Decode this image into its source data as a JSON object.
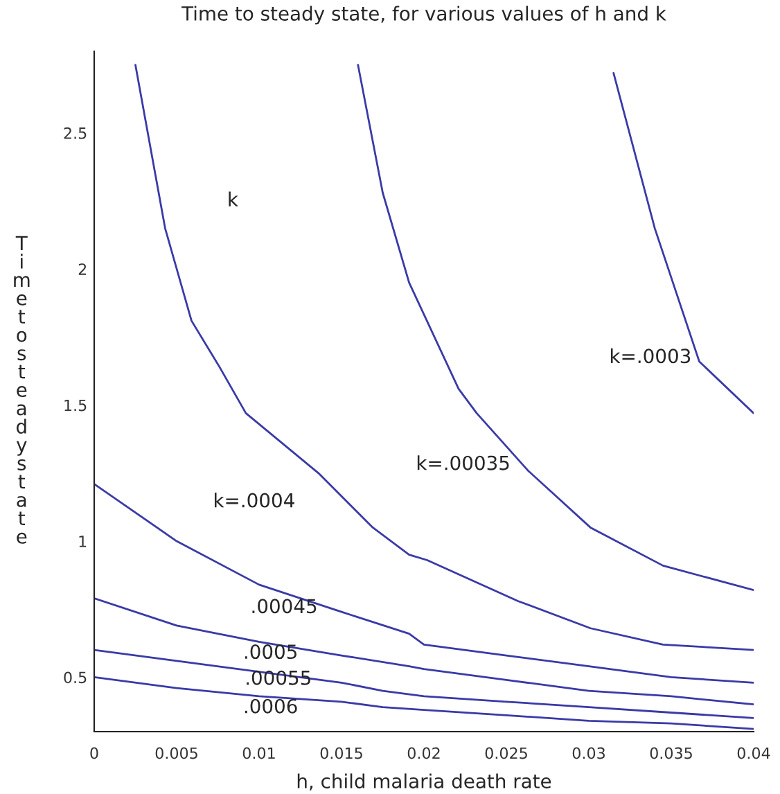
{
  "chart_data": {
    "type": "line",
    "title": "Time to steady state, for various values of h and k",
    "xlabel": "h, child malaria death rate",
    "ylabel": "Time to steady state",
    "xlim": [
      0,
      0.04
    ],
    "ylim": [
      0.3,
      2.8
    ],
    "xticks": [
      0,
      0.005,
      0.01,
      0.015,
      0.02,
      0.025,
      0.03,
      0.035,
      0.04
    ],
    "yticks": [
      0.5,
      1,
      1.5,
      2,
      2.5
    ],
    "grid": false,
    "marker": "none",
    "line_style": "solid",
    "series": [
      {
        "color": "#3a3aa8",
        "x": [
          0.0315,
          0.034,
          0.0367,
          0.04
        ],
        "values": [
          2.72,
          2.15,
          1.66,
          1.47
        ]
      },
      {
        "color": "#3a3aa8",
        "x": [
          0.016,
          0.0175,
          0.0191,
          0.0221,
          0.0232,
          0.0263,
          0.0301,
          0.0345,
          0.04
        ],
        "values": [
          2.75,
          2.28,
          1.95,
          1.56,
          1.47,
          1.26,
          1.05,
          0.91,
          0.82
        ]
      },
      {
        "color": "#3a3aa8",
        "x": [
          0.0025,
          0.0043,
          0.0059,
          0.0076,
          0.0092,
          0.0136,
          0.0169,
          0.0191,
          0.0202,
          0.0257,
          0.0301,
          0.0345,
          0.04
        ],
        "values": [
          2.75,
          2.15,
          1.81,
          1.64,
          1.47,
          1.25,
          1.05,
          0.95,
          0.93,
          0.78,
          0.68,
          0.62,
          0.6
        ]
      },
      {
        "color": "#3a3aa8",
        "x": [
          0,
          0.005,
          0.01,
          0.015,
          0.0191,
          0.02,
          0.025,
          0.03,
          0.035,
          0.04
        ],
        "values": [
          1.21,
          1.0,
          0.84,
          0.74,
          0.66,
          0.62,
          0.58,
          0.54,
          0.5,
          0.48
        ]
      },
      {
        "color": "#3a3aa8",
        "x": [
          0,
          0.005,
          0.01,
          0.015,
          0.0191,
          0.02,
          0.025,
          0.03,
          0.035,
          0.04
        ],
        "values": [
          0.79,
          0.69,
          0.63,
          0.58,
          0.54,
          0.53,
          0.49,
          0.45,
          0.43,
          0.4
        ]
      },
      {
        "color": "#3a3aa8",
        "x": [
          0,
          0.005,
          0.01,
          0.015,
          0.0175,
          0.02,
          0.025,
          0.03,
          0.035,
          0.04
        ],
        "values": [
          0.6,
          0.56,
          0.52,
          0.48,
          0.45,
          0.43,
          0.41,
          0.39,
          0.37,
          0.35
        ]
      },
      {
        "color": "#3a3aa8",
        "x": [
          0,
          0.005,
          0.01,
          0.015,
          0.0175,
          0.02,
          0.025,
          0.03,
          0.035,
          0.04
        ],
        "values": [
          0.5,
          0.46,
          0.43,
          0.41,
          0.39,
          0.38,
          0.36,
          0.34,
          0.33,
          0.31
        ]
      }
    ],
    "annotations": [
      "k",
      {
        "text": "k=.0003",
        "x": 0.0367,
        "y": 1.66
      },
      {
        "text": "k=.00035",
        "x": 0.0263,
        "y": 1.26
      },
      {
        "text": "k=.0004",
        "x": 0.0136,
        "y": 1.25
      },
      {
        "text": ".00045",
        "x": 0.01,
        "y": 0.84
      },
      {
        "text": ".0005",
        "x": 0.01,
        "y": 0.63
      },
      {
        "text": ".00055",
        "x": 0.01,
        "y": 0.52
      },
      {
        "text": ".0006",
        "x": 0.01,
        "y": 0.43
      }
    ]
  }
}
